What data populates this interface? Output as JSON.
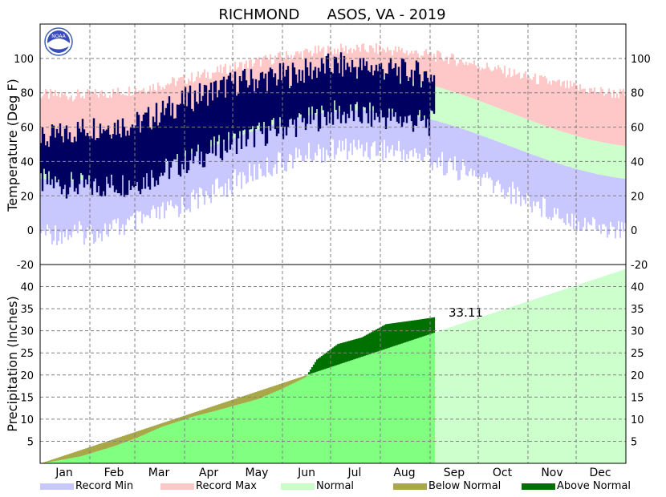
{
  "chart_data": [
    {
      "type": "area",
      "title": "RICHMOND      ASOS, VA - 2019",
      "ylabel": "Temperature (Deg F)",
      "ylim": [
        -20,
        120
      ],
      "yticks": [
        -20,
        0,
        20,
        40,
        60,
        80,
        100
      ],
      "grid": true,
      "x_axis": "day of year 2019",
      "normal_high": {
        "jan": 48,
        "jul": 90,
        "dec": 49
      },
      "normal_low": {
        "jan": 29,
        "jul": 70,
        "dec": 30
      },
      "record_max": {
        "jan": 75,
        "jul": 102,
        "dec": 76
      },
      "record_min": {
        "jan": 5,
        "jul": 55,
        "dec": 7
      },
      "observed_daily_range_sample": [
        {
          "month": "Jan",
          "low": 28,
          "high": 52
        },
        {
          "month": "Feb",
          "low": 25,
          "high": 60
        },
        {
          "month": "Mar",
          "low": 28,
          "high": 62
        },
        {
          "month": "Apr",
          "low": 40,
          "high": 76
        },
        {
          "month": "May",
          "low": 52,
          "high": 86
        },
        {
          "month": "Jun",
          "low": 60,
          "high": 90
        },
        {
          "month": "Jul",
          "low": 68,
          "high": 96
        },
        {
          "month": "Aug",
          "low": 66,
          "high": 94
        },
        {
          "month": "Sep",
          "low": 62,
          "high": 90
        }
      ]
    },
    {
      "type": "area",
      "ylabel": "Precipitation (Inches)",
      "ylim": [
        0,
        45
      ],
      "yticks": [
        5,
        10,
        15,
        20,
        25,
        30,
        35,
        40
      ],
      "grid": true,
      "categories": [
        "Jan",
        "Feb",
        "Mar",
        "Apr",
        "May",
        "Jun",
        "Jul",
        "Aug",
        "Sep",
        "Oct",
        "Nov",
        "Dec"
      ],
      "annotation": "33.11",
      "normal_cumulative": {
        "end_of_year": 44.0,
        "sep_1": 31.5
      },
      "observed_cumulative": [
        {
          "day": 0,
          "value": 0.0
        },
        {
          "day": 10,
          "value": 0.6
        },
        {
          "day": 25,
          "value": 1.6
        },
        {
          "day": 45,
          "value": 3.8
        },
        {
          "day": 60,
          "value": 5.8
        },
        {
          "day": 75,
          "value": 8.2
        },
        {
          "day": 95,
          "value": 10.6
        },
        {
          "day": 110,
          "value": 12.0
        },
        {
          "day": 135,
          "value": 14.5
        },
        {
          "day": 150,
          "value": 16.8
        },
        {
          "day": 165,
          "value": 19.5
        },
        {
          "day": 172,
          "value": 23.5
        },
        {
          "day": 185,
          "value": 27.0
        },
        {
          "day": 200,
          "value": 28.5
        },
        {
          "day": 215,
          "value": 31.5
        },
        {
          "day": 235,
          "value": 32.5
        },
        {
          "day": 246,
          "value": 33.11
        }
      ]
    }
  ],
  "legend": [
    {
      "label": "Record Min",
      "color": "#c8c8ff"
    },
    {
      "label": "Record Max",
      "color": "#ffc8c8"
    },
    {
      "label": "Normal",
      "color": "#c8ffc8"
    },
    {
      "label": "Below Normal",
      "color": "#a8a848"
    },
    {
      "label": "Above Normal",
      "color": "#007000"
    }
  ],
  "colors": {
    "observed": "#000060",
    "normal_light": "#ccffcc",
    "normal_bright": "#80ff80",
    "above_normal": "#007000",
    "below_normal": "#a8a848"
  },
  "logo": "NOAA"
}
